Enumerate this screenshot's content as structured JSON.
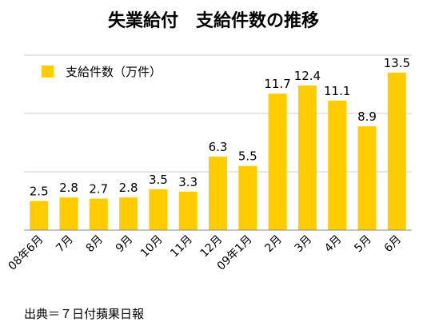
{
  "chart_data": {
    "type": "bar",
    "title": "失業給付　支給件数の推移",
    "categories": [
      "08年6月",
      "7月",
      "8月",
      "9月",
      "10月",
      "11月",
      "12月",
      "09年1月",
      "2月",
      "3月",
      "4月",
      "5月",
      "6月"
    ],
    "series": [
      {
        "name": "支給件数（万件）",
        "values": [
          2.5,
          2.8,
          2.7,
          2.8,
          3.5,
          3.3,
          6.3,
          5.5,
          11.7,
          12.4,
          11.1,
          8.9,
          13.5
        ]
      }
    ],
    "value_labels": [
      "2.5",
      "2.8",
      "2.7",
      "2.8",
      "3.5",
      "3.3",
      "6.3",
      "5.5",
      "11.7",
      "12.4",
      "11.1",
      "8.9",
      "13.5"
    ],
    "ylim": [
      0,
      15
    ],
    "grid": true,
    "legend_position": "top-left",
    "bar_color": "#FFCC00",
    "source": "出典＝７日付蘋果日報"
  }
}
